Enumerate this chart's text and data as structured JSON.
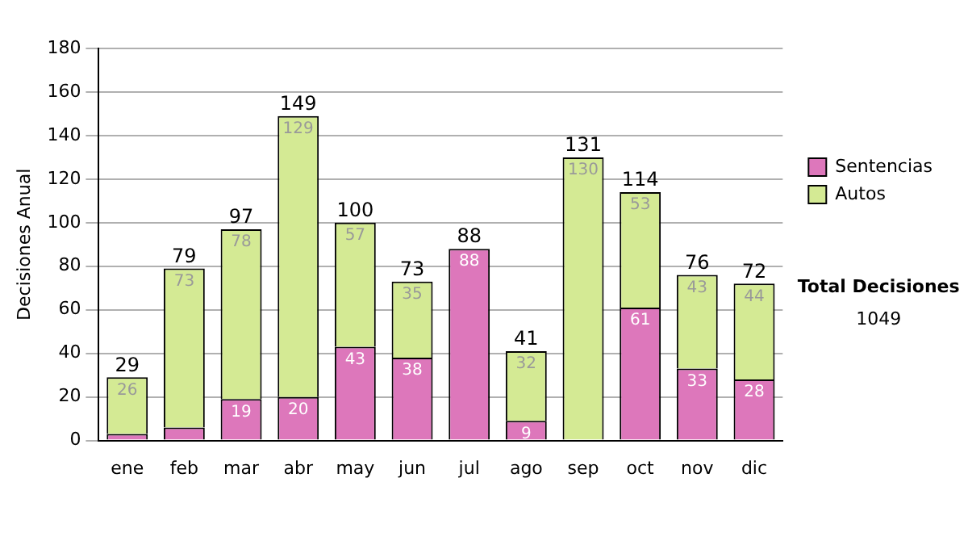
{
  "chart_data": {
    "type": "bar",
    "stacked": true,
    "ylabel": "Decisiones Anual",
    "categories": [
      "ene",
      "feb",
      "mar",
      "abr",
      "may",
      "jun",
      "jul",
      "ago",
      "sep",
      "oct",
      "nov",
      "dic"
    ],
    "series": [
      {
        "name": "Sentencias",
        "color": "#dd77bb",
        "values": [
          3,
          6,
          19,
          20,
          43,
          38,
          88,
          9,
          null,
          61,
          33,
          28
        ],
        "value_labels": [
          null,
          null,
          "19",
          "20",
          "43",
          "38",
          "88",
          "9",
          null,
          "61",
          "33",
          "28"
        ]
      },
      {
        "name": "Autos",
        "color": "#d4ea94",
        "values": [
          26,
          73,
          78,
          129,
          57,
          35,
          0,
          32,
          130,
          53,
          43,
          44
        ],
        "value_labels": [
          "26",
          "73",
          "78",
          "129",
          "57",
          "35",
          null,
          "32",
          "130",
          "53",
          "43",
          "44"
        ]
      }
    ],
    "totals": [
      "29",
      "79",
      "97",
      "149",
      "100",
      "73",
      "88",
      "41",
      "131",
      "114",
      "76",
      "72"
    ],
    "ylim": [
      0,
      180
    ],
    "yticks": [
      0,
      20,
      40,
      60,
      80,
      100,
      120,
      140,
      160,
      180
    ],
    "grid": "y",
    "legend": "right",
    "annotations": [
      "Total Decisiones",
      "1049"
    ]
  }
}
